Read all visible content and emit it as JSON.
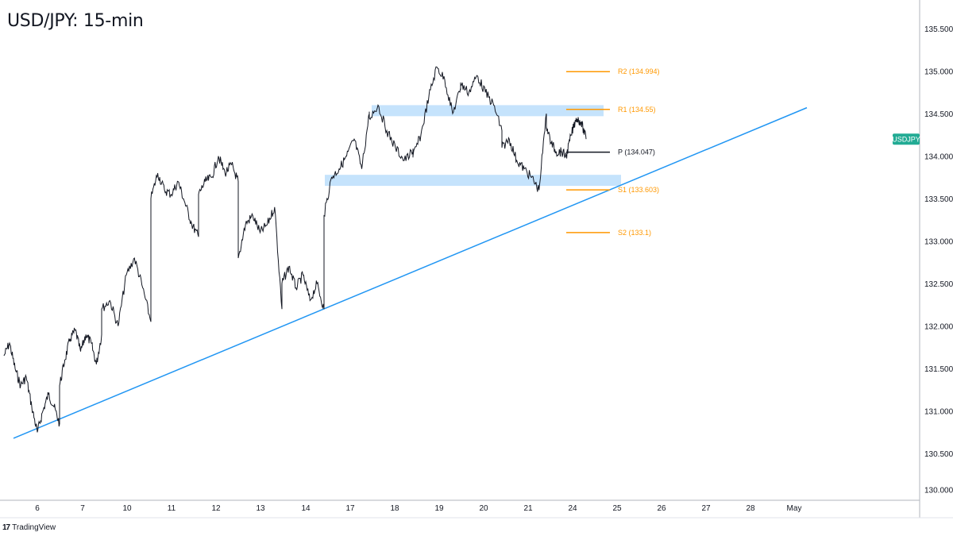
{
  "chart_data": {
    "type": "line",
    "title": "USD/JPY: 15-min",
    "symbol": "USDJPY",
    "x_ticks": [
      "6",
      "7",
      "10",
      "11",
      "12",
      "13",
      "14",
      "17",
      "18",
      "19",
      "20",
      "21",
      "24",
      "25",
      "26",
      "27",
      "28",
      "May"
    ],
    "y_ticks": [
      "130.000",
      "130.500",
      "131.000",
      "131.500",
      "132.000",
      "132.500",
      "133.000",
      "133.500",
      "134.000",
      "134.500",
      "135.000",
      "135.500"
    ],
    "ylim": [
      129.95,
      135.8
    ],
    "grid": false,
    "series": [
      {
        "name": "USDJPY",
        "color": "#131722",
        "points": [
          [
            "6",
            131.65
          ],
          [
            "6",
            131.8
          ],
          [
            "6",
            131.5
          ],
          [
            "6",
            131.3
          ],
          [
            "6",
            131.4
          ],
          [
            "6",
            131.05
          ],
          [
            "6",
            130.75
          ],
          [
            "6",
            131.0
          ],
          [
            "6",
            131.2
          ],
          [
            "6",
            131.05
          ],
          [
            "6",
            130.85
          ],
          [
            "7",
            131.3
          ],
          [
            "7",
            131.6
          ],
          [
            "7",
            131.85
          ],
          [
            "7",
            131.95
          ],
          [
            "7",
            131.7
          ],
          [
            "7",
            131.9
          ],
          [
            "7",
            131.8
          ],
          [
            "7",
            131.55
          ],
          [
            "7",
            131.9
          ],
          [
            "10",
            132.2
          ],
          [
            "10",
            132.3
          ],
          [
            "10",
            132.0
          ],
          [
            "10",
            132.6
          ],
          [
            "10",
            132.8
          ],
          [
            "10",
            132.45
          ],
          [
            "10",
            132.05
          ],
          [
            "11",
            133.5
          ],
          [
            "11",
            133.8
          ],
          [
            "11",
            133.6
          ],
          [
            "11",
            133.55
          ],
          [
            "11",
            133.7
          ],
          [
            "11",
            133.45
          ],
          [
            "11",
            133.2
          ],
          [
            "11",
            133.05
          ],
          [
            "12",
            133.55
          ],
          [
            "12",
            133.7
          ],
          [
            "12",
            133.75
          ],
          [
            "12",
            134.0
          ],
          [
            "12",
            133.8
          ],
          [
            "12",
            133.9
          ],
          [
            "12",
            133.7
          ],
          [
            "13",
            132.8
          ],
          [
            "13",
            133.2
          ],
          [
            "13",
            133.3
          ],
          [
            "13",
            133.1
          ],
          [
            "13",
            133.2
          ],
          [
            "13",
            133.4
          ],
          [
            "13",
            132.2
          ],
          [
            "14",
            132.5
          ],
          [
            "14",
            132.7
          ],
          [
            "14",
            132.45
          ],
          [
            "14",
            132.6
          ],
          [
            "14",
            132.3
          ],
          [
            "14",
            132.5
          ],
          [
            "14",
            132.2
          ],
          [
            "17",
            133.3
          ],
          [
            "17",
            133.75
          ],
          [
            "17",
            133.85
          ],
          [
            "17",
            134.0
          ],
          [
            "17",
            134.2
          ],
          [
            "17",
            133.85
          ],
          [
            "17",
            134.5
          ],
          [
            "18",
            134.45
          ],
          [
            "18",
            134.6
          ],
          [
            "18",
            134.3
          ],
          [
            "18",
            134.1
          ],
          [
            "18",
            133.95
          ],
          [
            "18",
            134.05
          ],
          [
            "19",
            134.0
          ],
          [
            "19",
            134.25
          ],
          [
            "19",
            134.7
          ],
          [
            "19",
            135.05
          ],
          [
            "19",
            134.9
          ],
          [
            "19",
            134.5
          ],
          [
            "19",
            134.8
          ],
          [
            "20",
            134.85
          ],
          [
            "20",
            134.75
          ],
          [
            "20",
            134.95
          ],
          [
            "20",
            134.75
          ],
          [
            "20",
            134.6
          ],
          [
            "20",
            134.3
          ],
          [
            "21",
            134.1
          ],
          [
            "21",
            134.2
          ],
          [
            "21",
            133.95
          ],
          [
            "21",
            133.85
          ],
          [
            "21",
            133.75
          ],
          [
            "21",
            133.6
          ],
          [
            "21",
            134.5
          ],
          [
            "24",
            134.35
          ],
          [
            "24",
            134.15
          ],
          [
            "24",
            134.05
          ],
          [
            "24",
            134.05
          ],
          [
            "24",
            134.0
          ],
          [
            "24",
            134.25
          ],
          [
            "24",
            134.45
          ],
          [
            "24",
            134.4
          ],
          [
            "24",
            134.2
          ]
        ]
      }
    ],
    "pivots": [
      {
        "label": "R2 (134.994)",
        "value": 134.994,
        "color": "#ff9800"
      },
      {
        "label": "R1 (134.55)",
        "value": 134.55,
        "color": "#ff9800"
      },
      {
        "label": "P (134.047)",
        "value": 134.047,
        "color": "#131722"
      },
      {
        "label": "S1 (133.603)",
        "value": 133.603,
        "color": "#ff9800"
      },
      {
        "label": "S2 (133.1)",
        "value": 133.1,
        "color": "#ff9800"
      }
    ],
    "zones": [
      {
        "from": 134.47,
        "to": 134.6,
        "color": "#bbdefb"
      },
      {
        "from": 133.65,
        "to": 133.78,
        "color": "#bbdefb"
      }
    ],
    "trendline": {
      "from": [
        "6",
        130.68
      ],
      "to": [
        "25",
        134.57
      ],
      "color": "#2196f3"
    },
    "price_tag": {
      "label": "USDJPY",
      "color": "#22ab94"
    }
  },
  "branding": {
    "logo": "17",
    "name": "TradingView"
  }
}
